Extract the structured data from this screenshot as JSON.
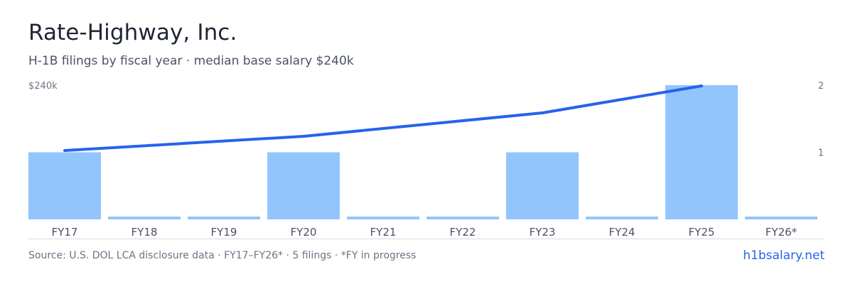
{
  "header": {
    "title": "Rate-Highway, Inc.",
    "subtitle": "H-1B filings by fiscal year · median base salary $240k"
  },
  "footer": {
    "source": "Source: U.S. DOL LCA disclosure data · FY17–FY26* · 5 filings · *FY in progress",
    "site": "h1bsalary.net"
  },
  "colors": {
    "bar": "#93c5fd",
    "line": "#2563eb",
    "text": "#1f2533",
    "muted": "#6b7385"
  },
  "chart_data": {
    "type": "bar",
    "categories": [
      "FY17",
      "FY18",
      "FY19",
      "FY20",
      "FY21",
      "FY22",
      "FY23",
      "FY24",
      "FY25",
      "FY26*"
    ],
    "series": [
      {
        "type": "bar",
        "axis": "right",
        "values": [
          1,
          0,
          0,
          1,
          0,
          0,
          1,
          0,
          2,
          0
        ]
      },
      {
        "type": "line",
        "axis": "left",
        "values": [
          null,
          null,
          null,
          null,
          null,
          null,
          null,
          null,
          240000,
          null
        ]
      }
    ],
    "left_axis": {
      "tick_label": "$240k"
    },
    "right_axis": {
      "ylim": [
        0,
        2
      ],
      "ticks": [
        "1",
        "2"
      ]
    },
    "grid": false,
    "legend": "none"
  }
}
